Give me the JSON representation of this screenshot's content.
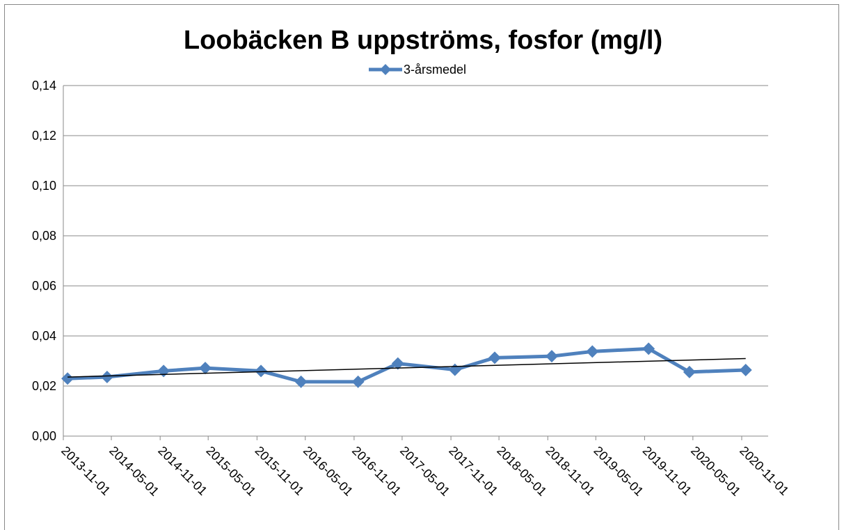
{
  "chart_data": {
    "type": "line",
    "title": "Loobäcken B uppströms, fosfor (mg/l)",
    "x": [
      "2013-11-17",
      "2014-04-15",
      "2014-11-14",
      "2015-04-20",
      "2015-11-16",
      "2016-04-15",
      "2016-11-16",
      "2017-04-15",
      "2017-11-16",
      "2018-04-15",
      "2018-11-16",
      "2019-04-18",
      "2019-11-16",
      "2020-04-18",
      "2020-11-16"
    ],
    "series": [
      {
        "name": "3-årsmedel",
        "color": "#4f81bd",
        "values": [
          0.023,
          0.0236,
          0.026,
          0.0272,
          0.026,
          0.0217,
          0.0217,
          0.029,
          0.0265,
          0.0313,
          0.0319,
          0.0338,
          0.0349,
          0.0256,
          0.0264
        ]
      }
    ],
    "trendline": true,
    "xticks": [
      "2013-11-01",
      "2014-05-01",
      "2014-11-01",
      "2015-05-01",
      "2015-11-01",
      "2016-05-01",
      "2016-11-01",
      "2017-05-01",
      "2017-11-01",
      "2018-05-01",
      "2018-11-01",
      "2019-05-01",
      "2019-11-01",
      "2020-05-01",
      "2020-11-01"
    ],
    "ylim": [
      0,
      0.14
    ],
    "yticks": [
      {
        "value": 0,
        "label": "0,00"
      },
      {
        "value": 0.02,
        "label": "0,02"
      },
      {
        "value": 0.04,
        "label": "0,04"
      },
      {
        "value": 0.06,
        "label": "0,06"
      },
      {
        "value": 0.08,
        "label": "0,08"
      },
      {
        "value": 0.1,
        "label": "0,10"
      },
      {
        "value": 0.12,
        "label": "0,12"
      },
      {
        "value": 0.14,
        "label": "0,14"
      }
    ],
    "grid": true,
    "legend": "top"
  }
}
